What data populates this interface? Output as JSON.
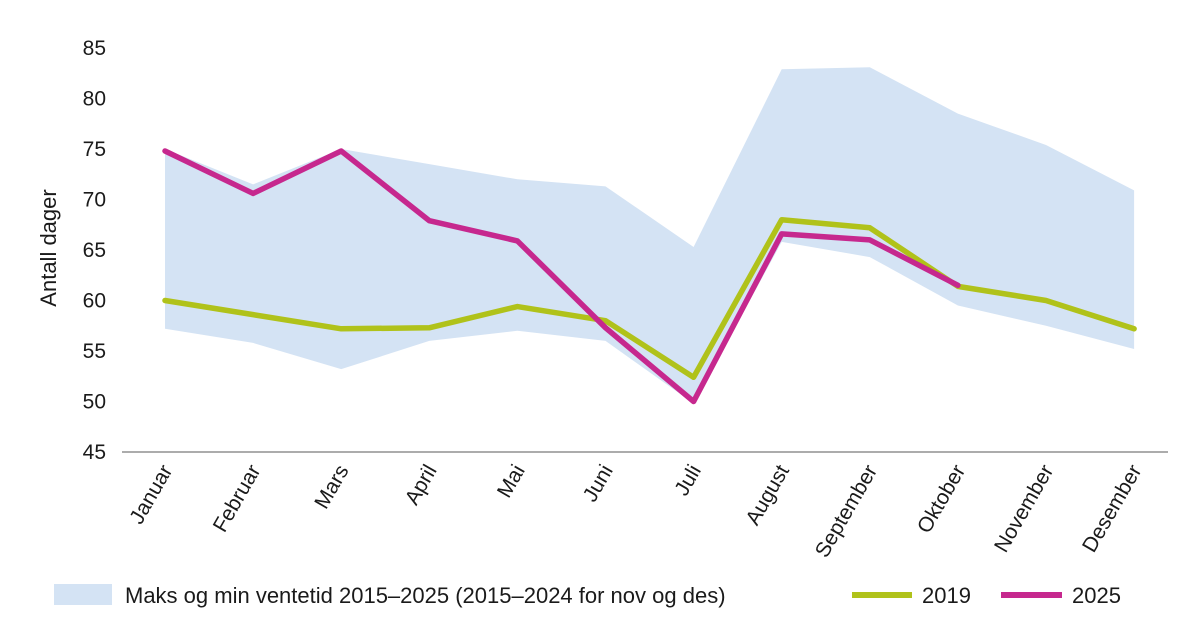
{
  "chart_data": {
    "type": "line",
    "title": "",
    "xlabel": "",
    "ylabel": "Antall dager",
    "ylim": [
      45,
      85
    ],
    "yticks": [
      45,
      50,
      55,
      60,
      65,
      70,
      75,
      80,
      85
    ],
    "grid": false,
    "legend_position": "bottom",
    "categories": [
      "Januar",
      "Februar",
      "Mars",
      "April",
      "Mai",
      "Juni",
      "Juli",
      "August",
      "September",
      "Oktober",
      "November",
      "Desember"
    ],
    "band": {
      "name": "Maks og min ventetid 2015–2025 (2015–2024 for nov og des)",
      "color": "#d4e3f4",
      "max": [
        75.0,
        71.5,
        75.0,
        73.5,
        72.0,
        71.3,
        65.3,
        82.9,
        83.1,
        78.5,
        75.4,
        70.9
      ],
      "min": [
        57.2,
        55.8,
        53.2,
        56.0,
        57.0,
        56.0,
        49.8,
        65.8,
        64.3,
        59.5,
        57.5,
        55.2
      ]
    },
    "series": [
      {
        "name": "2019",
        "color": "#b0c21a",
        "values": [
          60.0,
          58.6,
          57.2,
          57.3,
          59.4,
          58.0,
          52.4,
          68.0,
          67.2,
          61.4,
          60.0,
          57.2
        ]
      },
      {
        "name": "2025",
        "color": "#c6288e",
        "values": [
          74.8,
          70.6,
          74.8,
          67.9,
          65.9,
          57.3,
          50.0,
          66.6,
          66.0,
          61.5,
          null,
          null
        ]
      }
    ]
  }
}
